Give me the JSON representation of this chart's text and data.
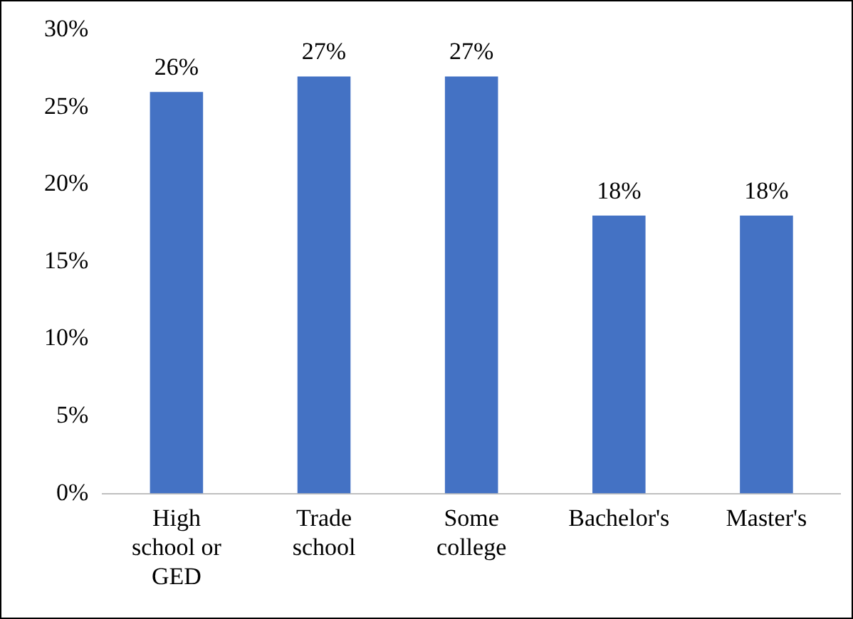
{
  "chart_data": {
    "type": "bar",
    "categories": [
      "High school or GED",
      "Trade school",
      "Some college",
      "Bachelor's",
      "Master's"
    ],
    "values": [
      26,
      27,
      27,
      18,
      18
    ],
    "color": "#4472c4",
    "ylim": [
      0,
      30
    ],
    "yticks": [
      {
        "value": 0,
        "label": "0%"
      },
      {
        "value": 5,
        "label": "5%"
      },
      {
        "value": 10,
        "label": "10%"
      },
      {
        "value": 15,
        "label": "15%"
      },
      {
        "value": 20,
        "label": "20%"
      },
      {
        "value": 25,
        "label": "25%"
      },
      {
        "value": 30,
        "label": "30%"
      }
    ],
    "grid": false,
    "legend": false,
    "value_labels": [
      "26%",
      "27%",
      "27%",
      "18%",
      "18%"
    ]
  }
}
